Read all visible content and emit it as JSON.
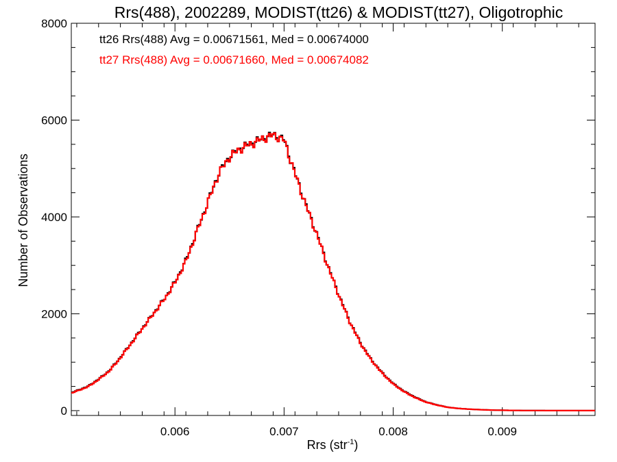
{
  "chart_data": {
    "type": "line",
    "title": "Rrs(488), 2002289, MODIST(tt26) & MODIST(tt27), Oligotrophic",
    "xlabel_main": "Rrs (str",
    "xlabel_sup": "-1",
    "xlabel_close": ")",
    "ylabel": "Number of Observations",
    "xlim": [
      0.00505,
      0.00985
    ],
    "ylim": [
      -100,
      8000
    ],
    "x_ticks": [
      {
        "value": 0.006,
        "label": "0.006"
      },
      {
        "value": 0.007,
        "label": "0.007"
      },
      {
        "value": 0.008,
        "label": "0.008"
      },
      {
        "value": 0.009,
        "label": "0.009"
      }
    ],
    "y_ticks": [
      {
        "value": 0,
        "label": "0"
      },
      {
        "value": 2000,
        "label": "2000"
      },
      {
        "value": 4000,
        "label": "4000"
      },
      {
        "value": 6000,
        "label": "6000"
      },
      {
        "value": 8000,
        "label": "8000"
      }
    ],
    "annotations": [
      {
        "text": "tt26 Rrs(488) Avg = 0.00671561, Med = 0.00674000",
        "color": "#000000"
      },
      {
        "text": "tt27 Rrs(488) Avg = 0.00671660, Med = 0.00674082",
        "color": "#ff0000"
      }
    ],
    "series": [
      {
        "color": "#000000",
        "x": [
          0.00505,
          0.0052,
          0.0053,
          0.0054,
          0.0055,
          0.0056,
          0.0057,
          0.0058,
          0.0059,
          0.006,
          0.0061,
          0.0062,
          0.0063,
          0.0064,
          0.0065,
          0.0066,
          0.0067,
          0.0068,
          0.0069,
          0.007,
          0.0071,
          0.0072,
          0.0073,
          0.0074,
          0.0075,
          0.0076,
          0.0077,
          0.0078,
          0.0079,
          0.008,
          0.0081,
          0.0082,
          0.0083,
          0.0084,
          0.0085,
          0.0086,
          0.0087,
          0.0088,
          0.0089,
          0.009,
          0.0091,
          0.0092,
          0.0094,
          0.0096,
          0.00985
        ],
        "values": [
          370,
          500,
          650,
          830,
          1100,
          1400,
          1700,
          2000,
          2300,
          2650,
          3100,
          3700,
          4300,
          4900,
          5250,
          5420,
          5520,
          5620,
          5700,
          5600,
          4900,
          4250,
          3650,
          3000,
          2400,
          1850,
          1400,
          1050,
          780,
          560,
          400,
          280,
          180,
          120,
          70,
          45,
          30,
          20,
          12,
          8,
          5,
          3,
          1,
          0,
          0
        ]
      },
      {
        "color": "#ff0000",
        "x": [
          0.00505,
          0.0052,
          0.0053,
          0.0054,
          0.0055,
          0.0056,
          0.0057,
          0.0058,
          0.0059,
          0.006,
          0.0061,
          0.0062,
          0.0063,
          0.0064,
          0.0065,
          0.0066,
          0.0067,
          0.0068,
          0.0069,
          0.007,
          0.0071,
          0.0072,
          0.0073,
          0.0074,
          0.0075,
          0.0076,
          0.0077,
          0.0078,
          0.0079,
          0.008,
          0.0081,
          0.0082,
          0.0083,
          0.0084,
          0.0085,
          0.0086,
          0.0087,
          0.0088,
          0.0089,
          0.009,
          0.0091,
          0.0092,
          0.0094,
          0.0096,
          0.00985
        ],
        "values": [
          360,
          490,
          640,
          820,
          1090,
          1390,
          1690,
          1990,
          2290,
          2640,
          3080,
          3690,
          4290,
          4890,
          5240,
          5410,
          5510,
          5610,
          5690,
          5590,
          4890,
          4240,
          3640,
          2990,
          2390,
          1840,
          1390,
          1040,
          770,
          550,
          390,
          270,
          175,
          115,
          68,
          44,
          29,
          19,
          11,
          7,
          4,
          2,
          1,
          0,
          0
        ]
      }
    ],
    "grid": false
  }
}
